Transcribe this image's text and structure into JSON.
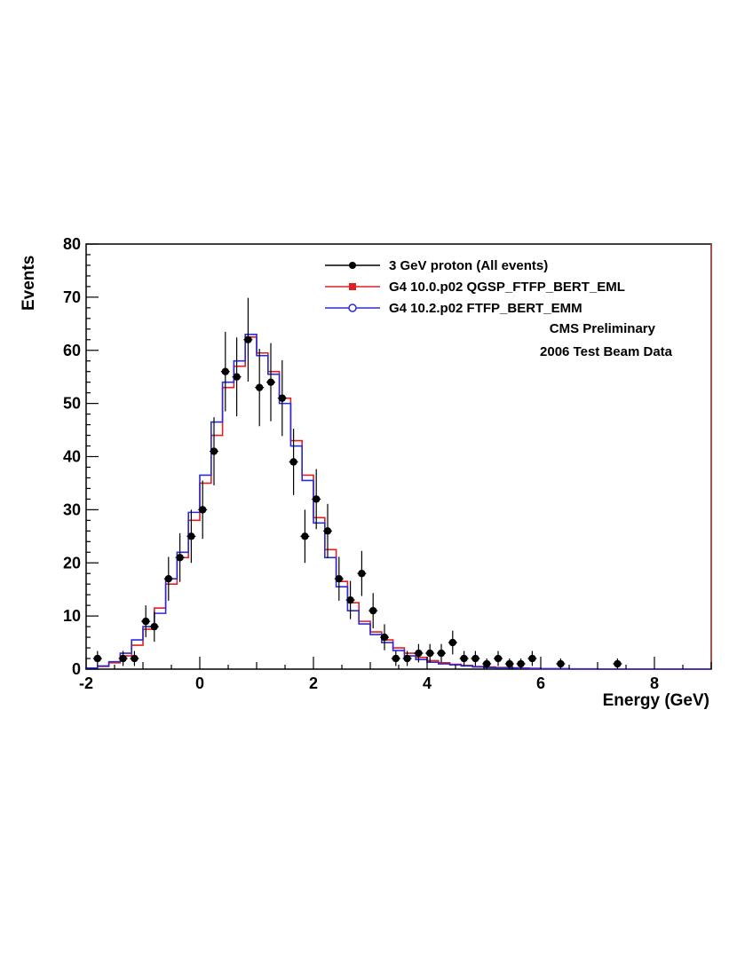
{
  "chart_data": {
    "type": "line",
    "xlabel": "Energy (GeV)",
    "ylabel": "Events",
    "xlim": [
      -2,
      9
    ],
    "ylim": [
      0,
      80
    ],
    "x_ticks": [
      -2,
      0,
      2,
      4,
      6,
      8
    ],
    "y_ticks": [
      0,
      10,
      20,
      30,
      40,
      50,
      60,
      70,
      80
    ],
    "grid": false,
    "legend_position": "top-right",
    "annotations": [
      "CMS Preliminary",
      "2006 Test Beam Data"
    ],
    "data": {
      "name": "3 GeV proton (All events)",
      "color": "#000000",
      "x": [
        -1.8,
        -1.35,
        -1.15,
        -0.95,
        -0.8,
        -0.55,
        -0.35,
        -0.15,
        0.05,
        0.25,
        0.45,
        0.65,
        0.85,
        1.05,
        1.25,
        1.45,
        1.65,
        1.85,
        2.05,
        2.25,
        2.45,
        2.65,
        2.85,
        3.05,
        3.25,
        3.45,
        3.65,
        3.85,
        4.05,
        4.25,
        4.45,
        4.65,
        4.85,
        5.05,
        5.25,
        5.45,
        5.65,
        5.85,
        6.35,
        7.35
      ],
      "y": [
        2,
        2,
        2,
        9,
        8,
        17,
        21,
        25,
        30,
        41,
        56,
        55,
        62,
        53,
        54,
        51,
        39,
        25,
        32,
        26,
        17,
        13,
        18,
        11,
        6,
        2,
        2,
        3,
        3,
        3,
        5,
        2,
        2,
        1,
        2,
        1,
        1,
        2,
        1,
        1
      ]
    },
    "series": [
      {
        "name": "G4 10.0.p02 QGSP_FTFP_BERT_EML",
        "color": "#e02020",
        "bin_edges": [
          -2,
          -1.8,
          -1.6,
          -1.4,
          -1.2,
          -1.0,
          -0.8,
          -0.6,
          -0.4,
          -0.2,
          0.0,
          0.2,
          0.4,
          0.6,
          0.8,
          1.0,
          1.2,
          1.4,
          1.6,
          1.8,
          2.0,
          2.2,
          2.4,
          2.6,
          2.8,
          3.0,
          3.2,
          3.4,
          3.6,
          3.8,
          4.0,
          4.2,
          4.4,
          4.6,
          4.8,
          5.0,
          5.2,
          5.4,
          5.6,
          5.8,
          6.0,
          6.5,
          7.0,
          9.0
        ],
        "values": [
          0.2,
          0.5,
          1.2,
          2.5,
          4.5,
          7.5,
          11.5,
          16.0,
          21.0,
          28.0,
          35.0,
          44.0,
          53.0,
          57.0,
          62.5,
          59.5,
          56.0,
          51.0,
          43.0,
          36.5,
          28.5,
          22.5,
          16.5,
          12.5,
          9.0,
          7.0,
          5.5,
          4.0,
          3.0,
          2.2,
          1.6,
          1.2,
          0.9,
          0.7,
          0.5,
          0.4,
          0.3,
          0.25,
          0.2,
          0.15,
          0.1,
          0.05,
          0.0
        ]
      },
      {
        "name": "G4 10.2.p02 FTFP_BERT_EMM",
        "color": "#2b2bd6",
        "bin_edges": [
          -2,
          -1.8,
          -1.6,
          -1.4,
          -1.2,
          -1.0,
          -0.8,
          -0.6,
          -0.4,
          -0.2,
          0.0,
          0.2,
          0.4,
          0.6,
          0.8,
          1.0,
          1.2,
          1.4,
          1.6,
          1.8,
          2.0,
          2.2,
          2.4,
          2.6,
          2.8,
          3.0,
          3.2,
          3.4,
          3.6,
          3.8,
          4.0,
          4.2,
          4.4,
          4.6,
          4.8,
          5.0,
          5.2,
          5.4,
          5.6,
          5.8,
          6.0,
          6.5,
          7.0,
          9.0
        ],
        "values": [
          0.2,
          0.6,
          1.4,
          3.0,
          5.5,
          8.0,
          10.5,
          17.0,
          22.0,
          29.5,
          36.5,
          46.5,
          54.0,
          58.0,
          63.0,
          59.0,
          55.5,
          50.0,
          42.0,
          35.5,
          27.5,
          21.0,
          15.5,
          11.0,
          8.5,
          6.5,
          5.0,
          3.5,
          2.5,
          1.8,
          1.3,
          1.0,
          0.8,
          0.6,
          0.4,
          0.3,
          0.25,
          0.2,
          0.15,
          0.1,
          0.05,
          0.02,
          0.0
        ]
      }
    ]
  }
}
